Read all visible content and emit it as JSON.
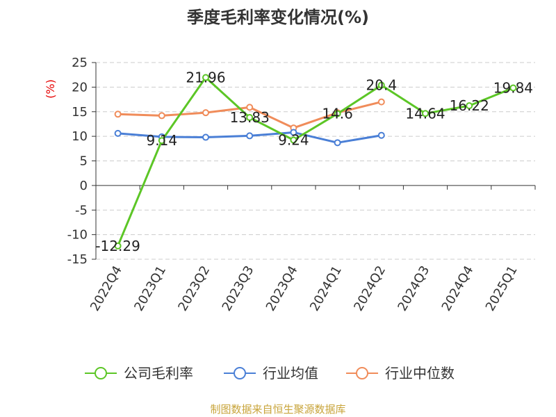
{
  "chart_data": {
    "type": "line",
    "title": "季度毛利率变化情况(%)",
    "ylabel": "(%)",
    "xlabel": "",
    "categories": [
      "2022Q4",
      "2023Q1",
      "2023Q2",
      "2023Q3",
      "2023Q4",
      "2024Q1",
      "2024Q2",
      "2024Q3",
      "2024Q4",
      "2025Q1"
    ],
    "ylim": [
      -15,
      25
    ],
    "yticks": [
      25,
      20,
      15,
      10,
      5,
      0,
      -5,
      -10,
      -15
    ],
    "grid": true,
    "legend_position": "bottom",
    "series": [
      {
        "name": "公司毛利率",
        "color": "#5cc626",
        "values": [
          -12.29,
          9.14,
          21.96,
          13.83,
          9.24,
          14.6,
          20.4,
          14.64,
          16.22,
          19.84
        ],
        "labels": [
          "-12.29",
          "9.14",
          "21.96",
          "13.83",
          "9.24",
          "14.6",
          "20.4",
          "14.64",
          "16.22",
          "19.84"
        ]
      },
      {
        "name": "行业均值",
        "color": "#4a7fd6",
        "values": [
          10.6,
          9.9,
          9.8,
          10.1,
          10.8,
          8.7,
          10.2,
          null,
          null,
          null
        ]
      },
      {
        "name": "行业中位数",
        "color": "#f08c5a",
        "values": [
          14.5,
          14.2,
          14.8,
          15.9,
          11.7,
          14.8,
          17.0,
          null,
          null,
          null
        ]
      }
    ]
  },
  "source": "制图数据来自恒生聚源数据库"
}
